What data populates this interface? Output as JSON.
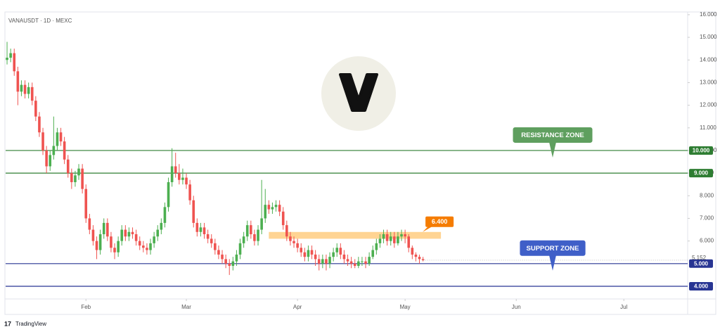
{
  "chart_data": {
    "type": "candlestick",
    "title": "VANAUSDT · 1D · MEXC",
    "footer": "TradingView",
    "up_color": "#4caf50",
    "down_color": "#ef5350",
    "grid": false,
    "xlim": [
      -0.4,
      189.8
    ],
    "ylim": [
      3.44,
      16.09
    ],
    "xticks": [
      {
        "value": 22,
        "label": "Feb"
      },
      {
        "value": 50,
        "label": "Mar"
      },
      {
        "value": 81,
        "label": "Apr"
      },
      {
        "value": 111,
        "label": "May"
      },
      {
        "value": 142,
        "label": "Jun"
      },
      {
        "value": 172,
        "label": "Jul"
      }
    ],
    "yticks": [
      {
        "value": 6,
        "label": "6.000"
      },
      {
        "value": 7,
        "label": "7.000"
      },
      {
        "value": 8,
        "label": "8.000"
      },
      {
        "value": 9,
        "label": "9.000"
      },
      {
        "value": 10,
        "label": "10.000"
      },
      {
        "value": 11,
        "label": "11.000"
      },
      {
        "value": 12,
        "label": "12.000"
      },
      {
        "value": 13,
        "label": "13.000"
      },
      {
        "value": 14,
        "label": "14.000"
      },
      {
        "value": 15,
        "label": "15.000"
      },
      {
        "value": 16,
        "label": "16.000"
      }
    ],
    "levels": [
      {
        "value": 10,
        "label": "10.000",
        "color": "#2e7d32"
      },
      {
        "value": 9,
        "label": "9.000",
        "color": "#2e7d32"
      },
      {
        "value": 5,
        "label": "5.000",
        "color": "#283593"
      },
      {
        "value": 4,
        "label": "4.000",
        "color": "#283593"
      }
    ],
    "last_price": {
      "value": 5.152,
      "label": "5.152"
    },
    "zone": {
      "low": 6.1,
      "high": 6.4,
      "start": 73,
      "end": 121,
      "color": "#ffcc80",
      "label": "6.400",
      "label_color": "#f57c00"
    },
    "annotations": [
      {
        "text": "RESISTANCE ZONE",
        "level": 10,
        "color": "#5f9f5f"
      },
      {
        "text": "SUPPORT ZONE",
        "level": 5,
        "color": "#3f5fc8"
      }
    ],
    "candles": [
      [
        14.0,
        14.8,
        13.8,
        14.1
      ],
      [
        14.1,
        14.5,
        13.9,
        14.3
      ],
      [
        14.3,
        14.5,
        13.3,
        13.5
      ],
      [
        13.5,
        13.7,
        12.0,
        12.6
      ],
      [
        12.6,
        13.1,
        12.4,
        12.9
      ],
      [
        12.9,
        13.1,
        12.3,
        12.5
      ],
      [
        12.5,
        13.0,
        12.3,
        12.8
      ],
      [
        12.8,
        13.0,
        12.0,
        12.2
      ],
      [
        12.2,
        12.4,
        11.3,
        11.5
      ],
      [
        11.5,
        11.7,
        10.6,
        10.8
      ],
      [
        10.8,
        11.0,
        9.8,
        10.0
      ],
      [
        10.0,
        10.2,
        9.0,
        9.3
      ],
      [
        9.3,
        10.0,
        9.1,
        9.8
      ],
      [
        9.8,
        11.5,
        9.6,
        10.2
      ],
      [
        10.2,
        11.0,
        10.0,
        10.8
      ],
      [
        10.8,
        11.0,
        10.2,
        10.4
      ],
      [
        10.4,
        10.6,
        9.4,
        9.6
      ],
      [
        9.6,
        9.8,
        8.8,
        9.0
      ],
      [
        9.0,
        9.2,
        8.3,
        8.6
      ],
      [
        8.6,
        9.1,
        8.4,
        8.9
      ],
      [
        8.9,
        9.4,
        8.7,
        9.2
      ],
      [
        9.2,
        9.4,
        8.1,
        8.3
      ],
      [
        8.3,
        8.5,
        6.8,
        7.0
      ],
      [
        7.0,
        7.2,
        6.3,
        6.5
      ],
      [
        6.5,
        6.7,
        5.8,
        6.0
      ],
      [
        6.0,
        6.2,
        5.2,
        5.6
      ],
      [
        5.6,
        6.5,
        5.4,
        6.3
      ],
      [
        6.3,
        7.0,
        6.1,
        6.8
      ],
      [
        6.8,
        7.0,
        6.0,
        6.2
      ],
      [
        6.2,
        6.4,
        5.5,
        5.7
      ],
      [
        5.7,
        5.9,
        5.2,
        5.5
      ],
      [
        5.5,
        6.2,
        5.3,
        6.0
      ],
      [
        6.0,
        6.7,
        5.8,
        6.5
      ],
      [
        6.5,
        6.7,
        6.0,
        6.2
      ],
      [
        6.2,
        6.6,
        6.0,
        6.4
      ],
      [
        6.4,
        6.6,
        6.1,
        6.3
      ],
      [
        6.3,
        6.5,
        5.8,
        6.0
      ],
      [
        6.0,
        6.2,
        5.6,
        5.8
      ],
      [
        5.8,
        6.0,
        5.5,
        5.7
      ],
      [
        5.7,
        5.9,
        5.4,
        5.6
      ],
      [
        5.6,
        6.1,
        5.4,
        5.9
      ],
      [
        5.9,
        6.4,
        5.7,
        6.2
      ],
      [
        6.2,
        6.7,
        6.0,
        6.5
      ],
      [
        6.5,
        7.0,
        6.3,
        6.8
      ],
      [
        6.8,
        7.7,
        6.6,
        7.5
      ],
      [
        7.5,
        8.8,
        7.3,
        8.6
      ],
      [
        8.6,
        10.1,
        8.4,
        9.3
      ],
      [
        9.3,
        9.9,
        8.8,
        9.0
      ],
      [
        9.0,
        9.4,
        8.5,
        8.7
      ],
      [
        8.7,
        9.2,
        8.5,
        8.8
      ],
      [
        8.8,
        9.0,
        8.3,
        8.5
      ],
      [
        8.5,
        8.7,
        7.6,
        7.8
      ],
      [
        7.8,
        8.0,
        6.6,
        6.8
      ],
      [
        6.8,
        7.0,
        6.2,
        6.4
      ],
      [
        6.4,
        6.8,
        6.2,
        6.6
      ],
      [
        6.6,
        6.8,
        6.1,
        6.3
      ],
      [
        6.3,
        6.5,
        5.9,
        6.1
      ],
      [
        6.1,
        6.3,
        5.7,
        5.9
      ],
      [
        5.9,
        6.1,
        5.4,
        5.6
      ],
      [
        5.6,
        5.8,
        5.2,
        5.4
      ],
      [
        5.4,
        5.6,
        5.0,
        5.2
      ],
      [
        5.2,
        5.4,
        4.8,
        5.0
      ],
      [
        5.0,
        5.2,
        4.5,
        4.9
      ],
      [
        4.9,
        5.3,
        4.7,
        5.1
      ],
      [
        5.1,
        5.6,
        4.9,
        5.4
      ],
      [
        5.4,
        6.1,
        5.2,
        5.9
      ],
      [
        5.9,
        6.4,
        5.7,
        6.2
      ],
      [
        6.2,
        6.9,
        6.0,
        6.7
      ],
      [
        6.7,
        6.9,
        6.1,
        6.3
      ],
      [
        6.3,
        6.5,
        5.8,
        6.0
      ],
      [
        6.0,
        6.7,
        5.8,
        6.5
      ],
      [
        6.5,
        8.7,
        6.3,
        7.0
      ],
      [
        7.0,
        8.3,
        6.8,
        7.6
      ],
      [
        7.6,
        7.8,
        7.2,
        7.4
      ],
      [
        7.4,
        7.7,
        7.2,
        7.5
      ],
      [
        7.5,
        7.8,
        7.3,
        7.6
      ],
      [
        7.6,
        7.8,
        7.1,
        7.3
      ],
      [
        7.3,
        7.5,
        6.5,
        6.7
      ],
      [
        6.7,
        6.9,
        6.0,
        6.2
      ],
      [
        6.2,
        6.4,
        5.8,
        6.0
      ],
      [
        6.0,
        6.2,
        5.7,
        5.9
      ],
      [
        5.9,
        6.1,
        5.5,
        5.7
      ],
      [
        5.7,
        5.9,
        5.3,
        5.5
      ],
      [
        5.5,
        5.7,
        5.1,
        5.3
      ],
      [
        5.3,
        5.8,
        5.1,
        5.6
      ],
      [
        5.6,
        5.8,
        5.2,
        5.4
      ],
      [
        5.4,
        5.6,
        4.9,
        5.2
      ],
      [
        5.2,
        5.4,
        4.7,
        5.0
      ],
      [
        5.0,
        5.4,
        4.8,
        5.2
      ],
      [
        5.2,
        5.4,
        4.7,
        5.0
      ],
      [
        5.0,
        5.5,
        4.8,
        5.3
      ],
      [
        5.3,
        5.7,
        5.1,
        5.5
      ],
      [
        5.5,
        5.9,
        5.3,
        5.7
      ],
      [
        5.7,
        5.9,
        5.2,
        5.4
      ],
      [
        5.4,
        5.6,
        5.0,
        5.2
      ],
      [
        5.2,
        5.4,
        4.9,
        5.1
      ],
      [
        5.1,
        5.3,
        4.8,
        5.0
      ],
      [
        5.0,
        5.2,
        4.8,
        4.9
      ],
      [
        4.9,
        5.3,
        4.8,
        5.1
      ],
      [
        5.1,
        5.3,
        4.9,
        5.1
      ],
      [
        5.1,
        5.3,
        4.8,
        5.0
      ],
      [
        5.0,
        5.5,
        4.9,
        5.3
      ],
      [
        5.3,
        5.8,
        5.2,
        5.6
      ],
      [
        5.6,
        6.1,
        5.4,
        5.9
      ],
      [
        5.9,
        6.3,
        5.7,
        6.1
      ],
      [
        6.1,
        6.5,
        5.9,
        6.3
      ],
      [
        6.3,
        6.5,
        5.8,
        6.0
      ],
      [
        6.0,
        6.4,
        5.8,
        6.2
      ],
      [
        6.2,
        6.4,
        5.7,
        5.9
      ],
      [
        5.9,
        6.4,
        5.8,
        6.2
      ],
      [
        6.2,
        6.5,
        6.0,
        6.3
      ],
      [
        6.3,
        6.5,
        5.9,
        6.2
      ],
      [
        6.2,
        6.3,
        5.5,
        5.7
      ],
      [
        5.7,
        5.8,
        5.2,
        5.4
      ],
      [
        5.4,
        5.5,
        5.1,
        5.3
      ],
      [
        5.3,
        5.4,
        5.0,
        5.2
      ],
      [
        5.2,
        5.3,
        5.1,
        5.152
      ]
    ]
  }
}
